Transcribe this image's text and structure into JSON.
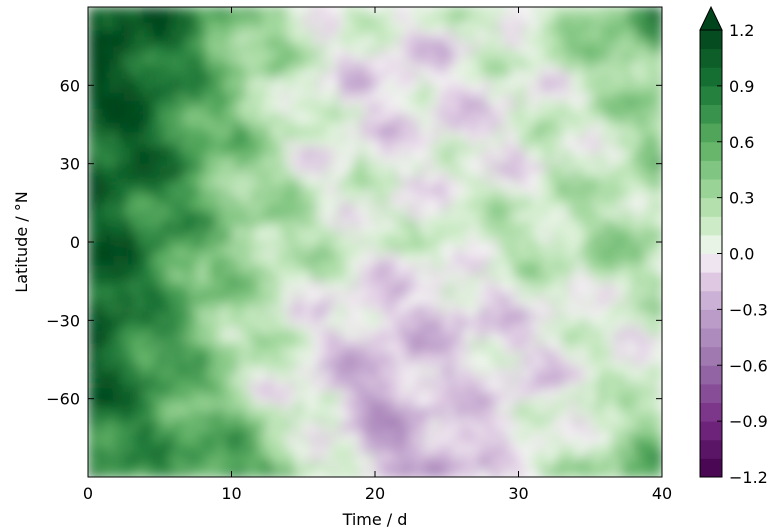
{
  "chart_data": {
    "type": "heatmap",
    "title": "",
    "xlabel": "Time / d",
    "ylabel": "Latitude / °N",
    "xlim": [
      0,
      40
    ],
    "ylim": [
      -90,
      90
    ],
    "x_ticks": [
      0,
      10,
      20,
      30,
      40
    ],
    "x_tick_labels": [
      "0",
      "10",
      "20",
      "30",
      "40"
    ],
    "y_ticks": [
      -60,
      -30,
      0,
      30,
      60
    ],
    "y_tick_labels": [
      "−60",
      "−30",
      "0",
      "30",
      "60"
    ],
    "grid": false,
    "colormap": "PRGn",
    "colorbar": {
      "ticks": [
        -1.2,
        -0.9,
        -0.6,
        -0.3,
        0.0,
        0.3,
        0.6,
        0.9,
        1.2
      ],
      "tick_labels": [
        "−1.2",
        "−0.9",
        "−0.6",
        "−0.3",
        "0.0",
        "0.3",
        "0.6",
        "0.9",
        "1.2"
      ],
      "vmin": -1.2,
      "vmax": 1.2,
      "levels": 24,
      "extend": "max",
      "colors": {
        "low": "#40004b",
        "mid": "#f7f7f7",
        "high": "#00441b"
      }
    },
    "field_pattern": {
      "x_samples": [
        0,
        5,
        10,
        15,
        20,
        25,
        30,
        35,
        40
      ],
      "y_samples": [
        90,
        60,
        30,
        0,
        -30,
        -60,
        -90
      ],
      "values": [
        [
          1.2,
          1.0,
          0.55,
          0.2,
          0.05,
          0.1,
          0.2,
          0.35,
          0.9
        ],
        [
          1.2,
          1.0,
          0.4,
          0.1,
          -0.15,
          -0.1,
          0.05,
          0.2,
          0.4
        ],
        [
          1.1,
          0.9,
          0.45,
          0.1,
          0.05,
          0.0,
          0.05,
          0.15,
          0.35
        ],
        [
          1.1,
          0.8,
          0.4,
          0.25,
          0.05,
          0.1,
          0.2,
          0.3,
          0.3
        ],
        [
          1.2,
          0.7,
          0.3,
          0.05,
          -0.15,
          -0.2,
          -0.05,
          0.05,
          0.1
        ],
        [
          1.0,
          0.8,
          0.3,
          0.0,
          -0.3,
          -0.1,
          -0.1,
          0.1,
          0.2
        ],
        [
          0.8,
          0.6,
          0.9,
          0.3,
          -0.2,
          -0.4,
          0.1,
          0.3,
          0.7
        ]
      ]
    }
  }
}
